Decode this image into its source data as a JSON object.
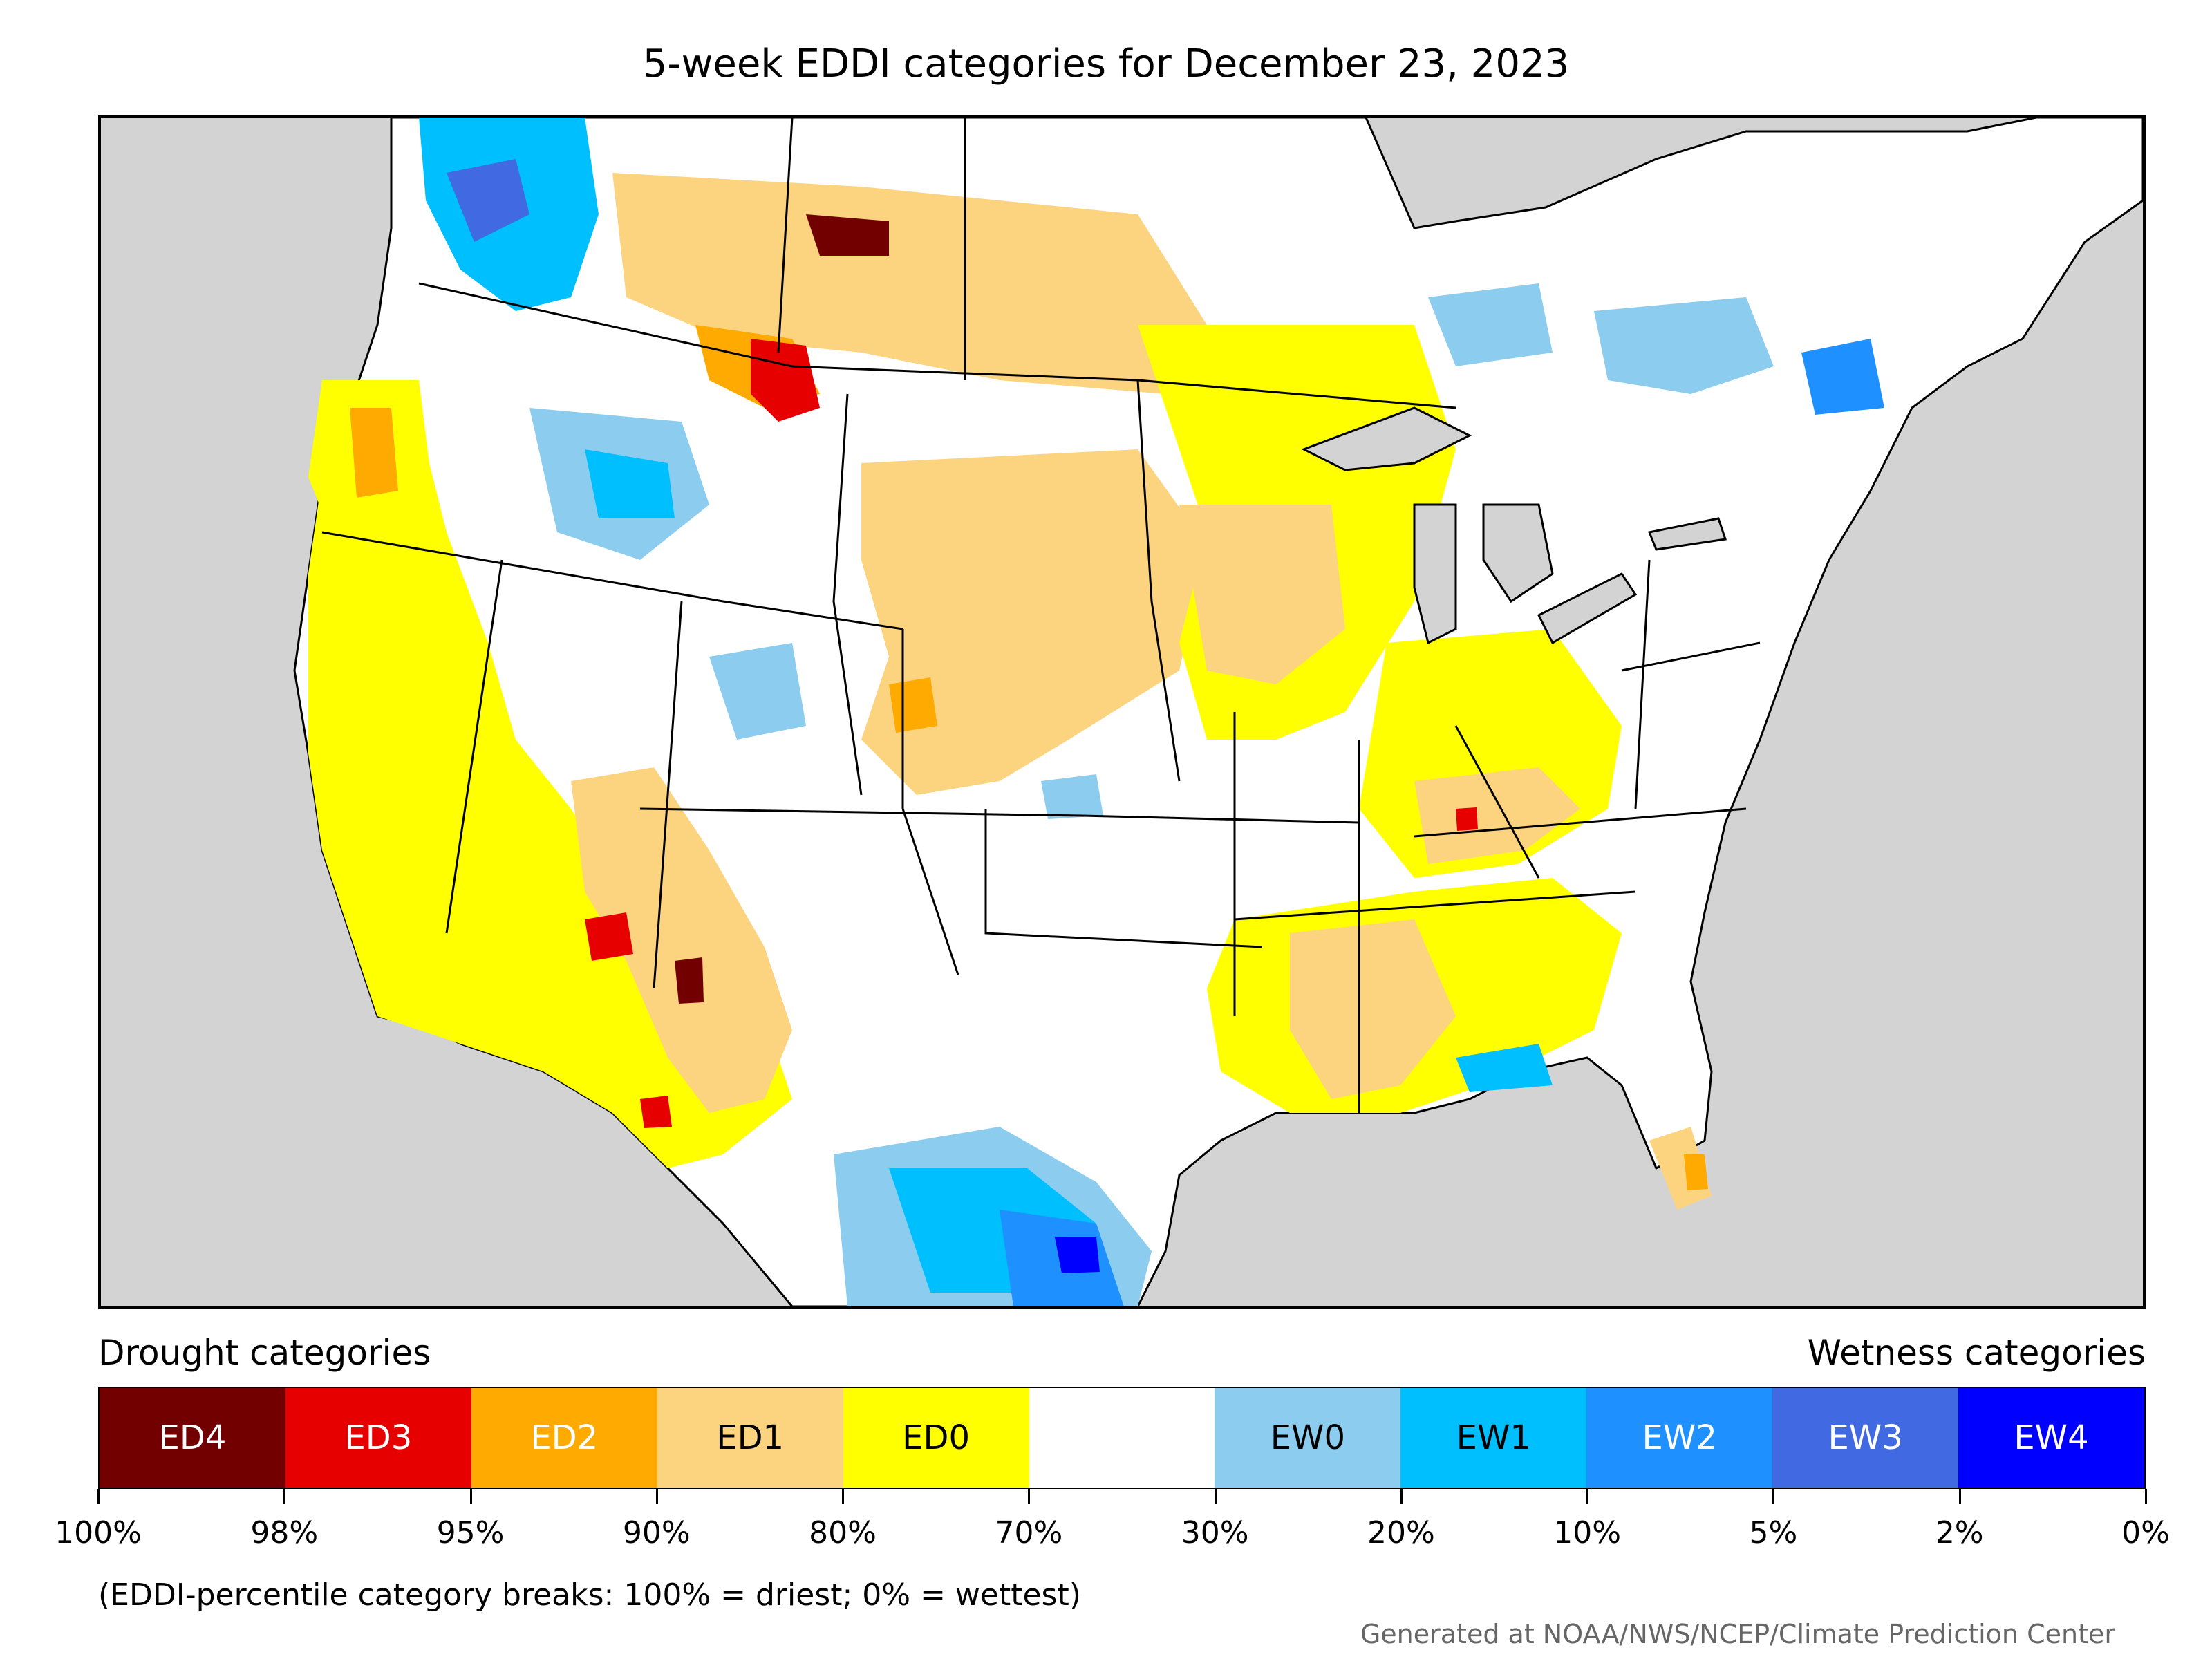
{
  "title": "5-week EDDI categories for December 23, 2023",
  "legend": {
    "drought_heading": "Drought categories",
    "wetness_heading": "Wetness categories",
    "categories": [
      {
        "label": "ED4",
        "color": "#730000",
        "text_color": "#ffffff"
      },
      {
        "label": "ED3",
        "color": "#e60000",
        "text_color": "#ffffff"
      },
      {
        "label": "ED2",
        "color": "#ffaa00",
        "text_color": "#ffffff"
      },
      {
        "label": "ED1",
        "color": "#fcd37f",
        "text_color": "#000000"
      },
      {
        "label": "ED0",
        "color": "#ffff00",
        "text_color": "#000000"
      },
      {
        "label": "",
        "color": "#ffffff",
        "text_color": "#000000"
      },
      {
        "label": "EW0",
        "color": "#8ccdef",
        "text_color": "#000000"
      },
      {
        "label": "EW1",
        "color": "#00bfff",
        "text_color": "#000000"
      },
      {
        "label": "EW2",
        "color": "#1e90ff",
        "text_color": "#ffffff"
      },
      {
        "label": "EW3",
        "color": "#4169e1",
        "text_color": "#ffffff"
      },
      {
        "label": "EW4",
        "color": "#0000ff",
        "text_color": "#ffffff"
      }
    ],
    "breaks": [
      "100%",
      "98%",
      "95%",
      "90%",
      "80%",
      "70%",
      "30%",
      "20%",
      "10%",
      "5%",
      "2%",
      "0%"
    ]
  },
  "note": "(EDDI-percentile category breaks: 100% = driest; 0% = wettest)",
  "credit": "Generated at NOAA/NWS/NCEP/Climate Prediction Center",
  "colors": {
    "background_land_outside": "#d3d3d3",
    "water": "#d3d3d3",
    "no_category": "#ffffff",
    "boundary": "#000000"
  }
}
